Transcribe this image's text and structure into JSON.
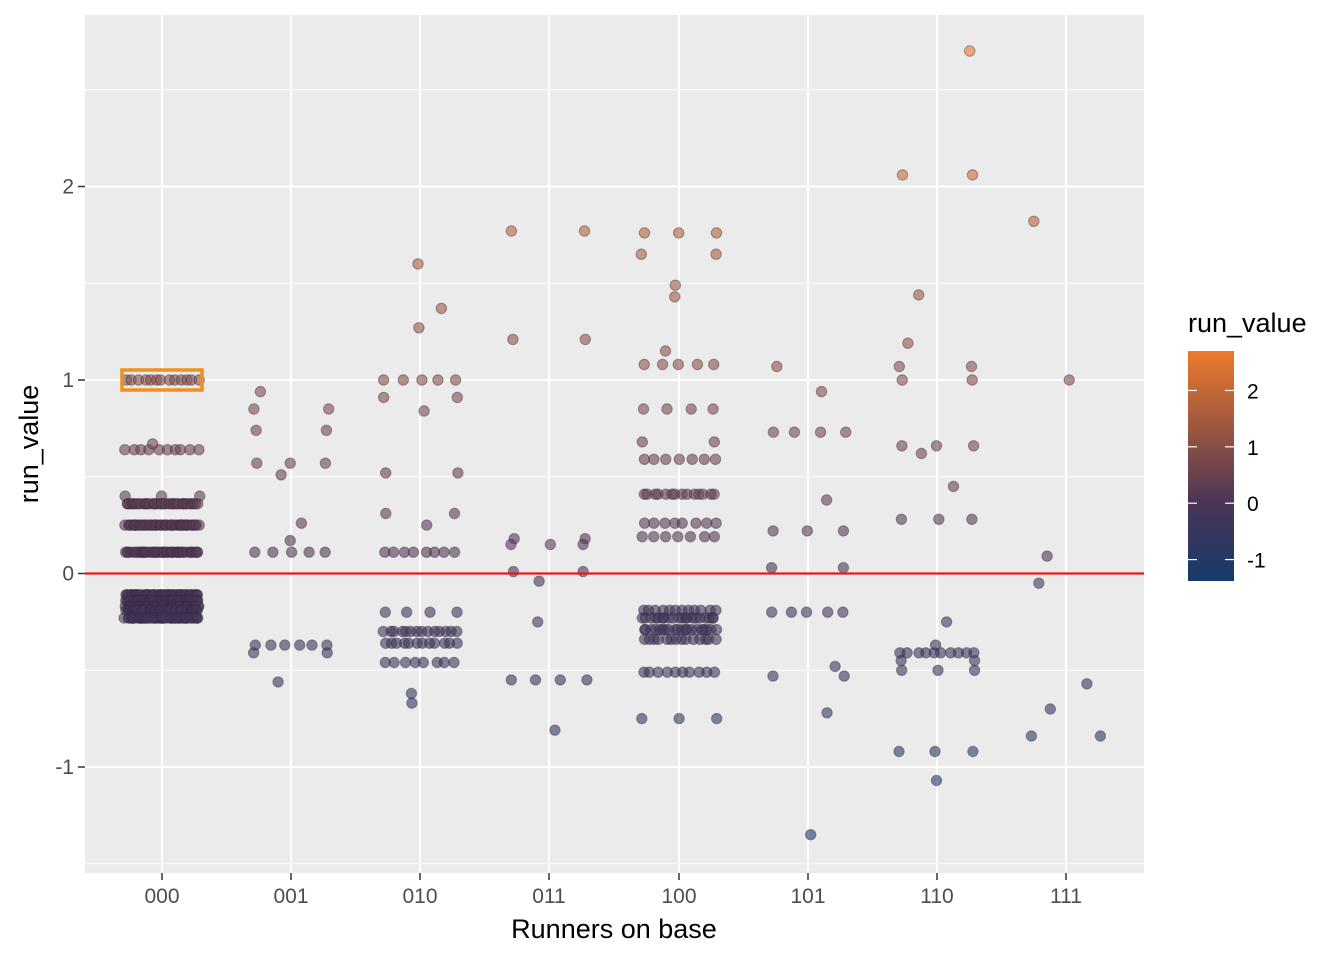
{
  "chart_data": {
    "type": "scatter",
    "xlabel": "Runners on base",
    "ylabel": "run_value",
    "categories": [
      "000",
      "001",
      "010",
      "011",
      "100",
      "101",
      "110",
      "111"
    ],
    "y_ticks": [
      -1,
      0,
      1,
      2
    ],
    "ylim": [
      -1.55,
      2.8
    ],
    "grid": true,
    "reference_line": {
      "y": 0,
      "color": "#e41a1c"
    },
    "highlight": {
      "category": "000",
      "y": 1.0,
      "color": "#f0901e"
    },
    "legend": {
      "title": "run_value",
      "placement": "right",
      "type": "colorbar",
      "breaks": [
        2,
        1,
        0,
        -1
      ],
      "low_color": "#163a6b",
      "mid_color": "#4a3556",
      "high_color": "#ee7a2a",
      "range": [
        -1.38,
        2.7
      ]
    },
    "points": [
      {
        "x": "000",
        "y": 1.0,
        "n": 13
      },
      {
        "x": "000",
        "y": 0.64,
        "n": 10
      },
      {
        "x": "000",
        "y": 0.67,
        "n": 1
      },
      {
        "x": "000",
        "y": 0.4,
        "n": 3
      },
      {
        "x": "000",
        "y": 0.36,
        "n": 40
      },
      {
        "x": "000",
        "y": 0.25,
        "n": 45
      },
      {
        "x": "000",
        "y": 0.11,
        "n": 40
      },
      {
        "x": "000",
        "y": -0.11,
        "n": 50
      },
      {
        "x": "000",
        "y": -0.14,
        "n": 50
      },
      {
        "x": "000",
        "y": -0.17,
        "n": 50
      },
      {
        "x": "000",
        "y": -0.19,
        "n": 50
      },
      {
        "x": "000",
        "y": -0.23,
        "n": 50
      },
      {
        "x": "001",
        "y": 0.94,
        "n": 1
      },
      {
        "x": "001",
        "y": 0.85,
        "n": 2
      },
      {
        "x": "001",
        "y": 0.74,
        "n": 2
      },
      {
        "x": "001",
        "y": 0.57,
        "n": 3
      },
      {
        "x": "001",
        "y": 0.51,
        "n": 1
      },
      {
        "x": "001",
        "y": 0.26,
        "n": 1
      },
      {
        "x": "001",
        "y": 0.17,
        "n": 1
      },
      {
        "x": "001",
        "y": 0.11,
        "n": 5
      },
      {
        "x": "001",
        "y": -0.37,
        "n": 6
      },
      {
        "x": "001",
        "y": -0.41,
        "n": 2
      },
      {
        "x": "001",
        "y": -0.56,
        "n": 1
      },
      {
        "x": "010",
        "y": 1.6,
        "n": 1
      },
      {
        "x": "010",
        "y": 1.37,
        "n": 1
      },
      {
        "x": "010",
        "y": 1.27,
        "n": 1
      },
      {
        "x": "010",
        "y": 1.0,
        "n": 5
      },
      {
        "x": "010",
        "y": 0.91,
        "n": 2
      },
      {
        "x": "010",
        "y": 0.84,
        "n": 1
      },
      {
        "x": "010",
        "y": 0.52,
        "n": 2
      },
      {
        "x": "010",
        "y": 0.31,
        "n": 2
      },
      {
        "x": "010",
        "y": 0.25,
        "n": 1
      },
      {
        "x": "010",
        "y": 0.11,
        "n": 8
      },
      {
        "x": "010",
        "y": -0.2,
        "n": 4
      },
      {
        "x": "010",
        "y": -0.3,
        "n": 14
      },
      {
        "x": "010",
        "y": -0.36,
        "n": 12
      },
      {
        "x": "010",
        "y": -0.46,
        "n": 8
      },
      {
        "x": "010",
        "y": -0.62,
        "n": 1
      },
      {
        "x": "010",
        "y": -0.67,
        "n": 1
      },
      {
        "x": "011",
        "y": 1.77,
        "n": 2
      },
      {
        "x": "011",
        "y": 1.21,
        "n": 2
      },
      {
        "x": "011",
        "y": 0.18,
        "n": 2
      },
      {
        "x": "011",
        "y": 0.15,
        "n": 3
      },
      {
        "x": "011",
        "y": 0.01,
        "n": 2
      },
      {
        "x": "011",
        "y": -0.04,
        "n": 1
      },
      {
        "x": "011",
        "y": -0.25,
        "n": 1
      },
      {
        "x": "011",
        "y": -0.55,
        "n": 4
      },
      {
        "x": "011",
        "y": -0.81,
        "n": 1
      },
      {
        "x": "100",
        "y": 1.76,
        "n": 3
      },
      {
        "x": "100",
        "y": 1.65,
        "n": 2
      },
      {
        "x": "100",
        "y": 1.49,
        "n": 1
      },
      {
        "x": "100",
        "y": 1.43,
        "n": 1
      },
      {
        "x": "100",
        "y": 1.15,
        "n": 1
      },
      {
        "x": "100",
        "y": 1.08,
        "n": 5
      },
      {
        "x": "100",
        "y": 0.85,
        "n": 4
      },
      {
        "x": "100",
        "y": 0.68,
        "n": 2
      },
      {
        "x": "100",
        "y": 0.59,
        "n": 7
      },
      {
        "x": "100",
        "y": 0.41,
        "n": 14
      },
      {
        "x": "100",
        "y": 0.26,
        "n": 8
      },
      {
        "x": "100",
        "y": 0.19,
        "n": 7
      },
      {
        "x": "100",
        "y": -0.19,
        "n": 12
      },
      {
        "x": "100",
        "y": -0.23,
        "n": 20
      },
      {
        "x": "100",
        "y": -0.29,
        "n": 20
      },
      {
        "x": "100",
        "y": -0.34,
        "n": 14
      },
      {
        "x": "100",
        "y": -0.51,
        "n": 10
      },
      {
        "x": "100",
        "y": -0.75,
        "n": 3
      },
      {
        "x": "101",
        "y": 1.07,
        "n": 1
      },
      {
        "x": "101",
        "y": 0.94,
        "n": 1
      },
      {
        "x": "101",
        "y": 0.73,
        "n": 4
      },
      {
        "x": "101",
        "y": 0.38,
        "n": 1
      },
      {
        "x": "101",
        "y": 0.22,
        "n": 3
      },
      {
        "x": "101",
        "y": 0.03,
        "n": 2
      },
      {
        "x": "101",
        "y": -0.2,
        "n": 5
      },
      {
        "x": "101",
        "y": -0.48,
        "n": 1
      },
      {
        "x": "101",
        "y": -0.53,
        "n": 2
      },
      {
        "x": "101",
        "y": -0.72,
        "n": 1
      },
      {
        "x": "101",
        "y": -1.35,
        "n": 1
      },
      {
        "x": "110",
        "y": 2.7,
        "n": 1
      },
      {
        "x": "110",
        "y": 2.06,
        "n": 2
      },
      {
        "x": "110",
        "y": 1.44,
        "n": 1
      },
      {
        "x": "110",
        "y": 1.19,
        "n": 1
      },
      {
        "x": "110",
        "y": 1.07,
        "n": 2
      },
      {
        "x": "110",
        "y": 1.0,
        "n": 2
      },
      {
        "x": "110",
        "y": 0.66,
        "n": 3
      },
      {
        "x": "110",
        "y": 0.62,
        "n": 1
      },
      {
        "x": "110",
        "y": 0.45,
        "n": 1
      },
      {
        "x": "110",
        "y": 0.28,
        "n": 3
      },
      {
        "x": "110",
        "y": -0.25,
        "n": 1
      },
      {
        "x": "110",
        "y": -0.37,
        "n": 1
      },
      {
        "x": "110",
        "y": -0.41,
        "n": 10
      },
      {
        "x": "110",
        "y": -0.45,
        "n": 2
      },
      {
        "x": "110",
        "y": -0.5,
        "n": 3
      },
      {
        "x": "110",
        "y": -0.92,
        "n": 3
      },
      {
        "x": "110",
        "y": -1.07,
        "n": 1
      },
      {
        "x": "111",
        "y": 1.82,
        "n": 1
      },
      {
        "x": "111",
        "y": 1.0,
        "n": 1
      },
      {
        "x": "111",
        "y": 0.09,
        "n": 1
      },
      {
        "x": "111",
        "y": -0.05,
        "n": 1
      },
      {
        "x": "111",
        "y": -0.57,
        "n": 1
      },
      {
        "x": "111",
        "y": -0.7,
        "n": 1
      },
      {
        "x": "111",
        "y": -0.84,
        "n": 2
      }
    ]
  }
}
